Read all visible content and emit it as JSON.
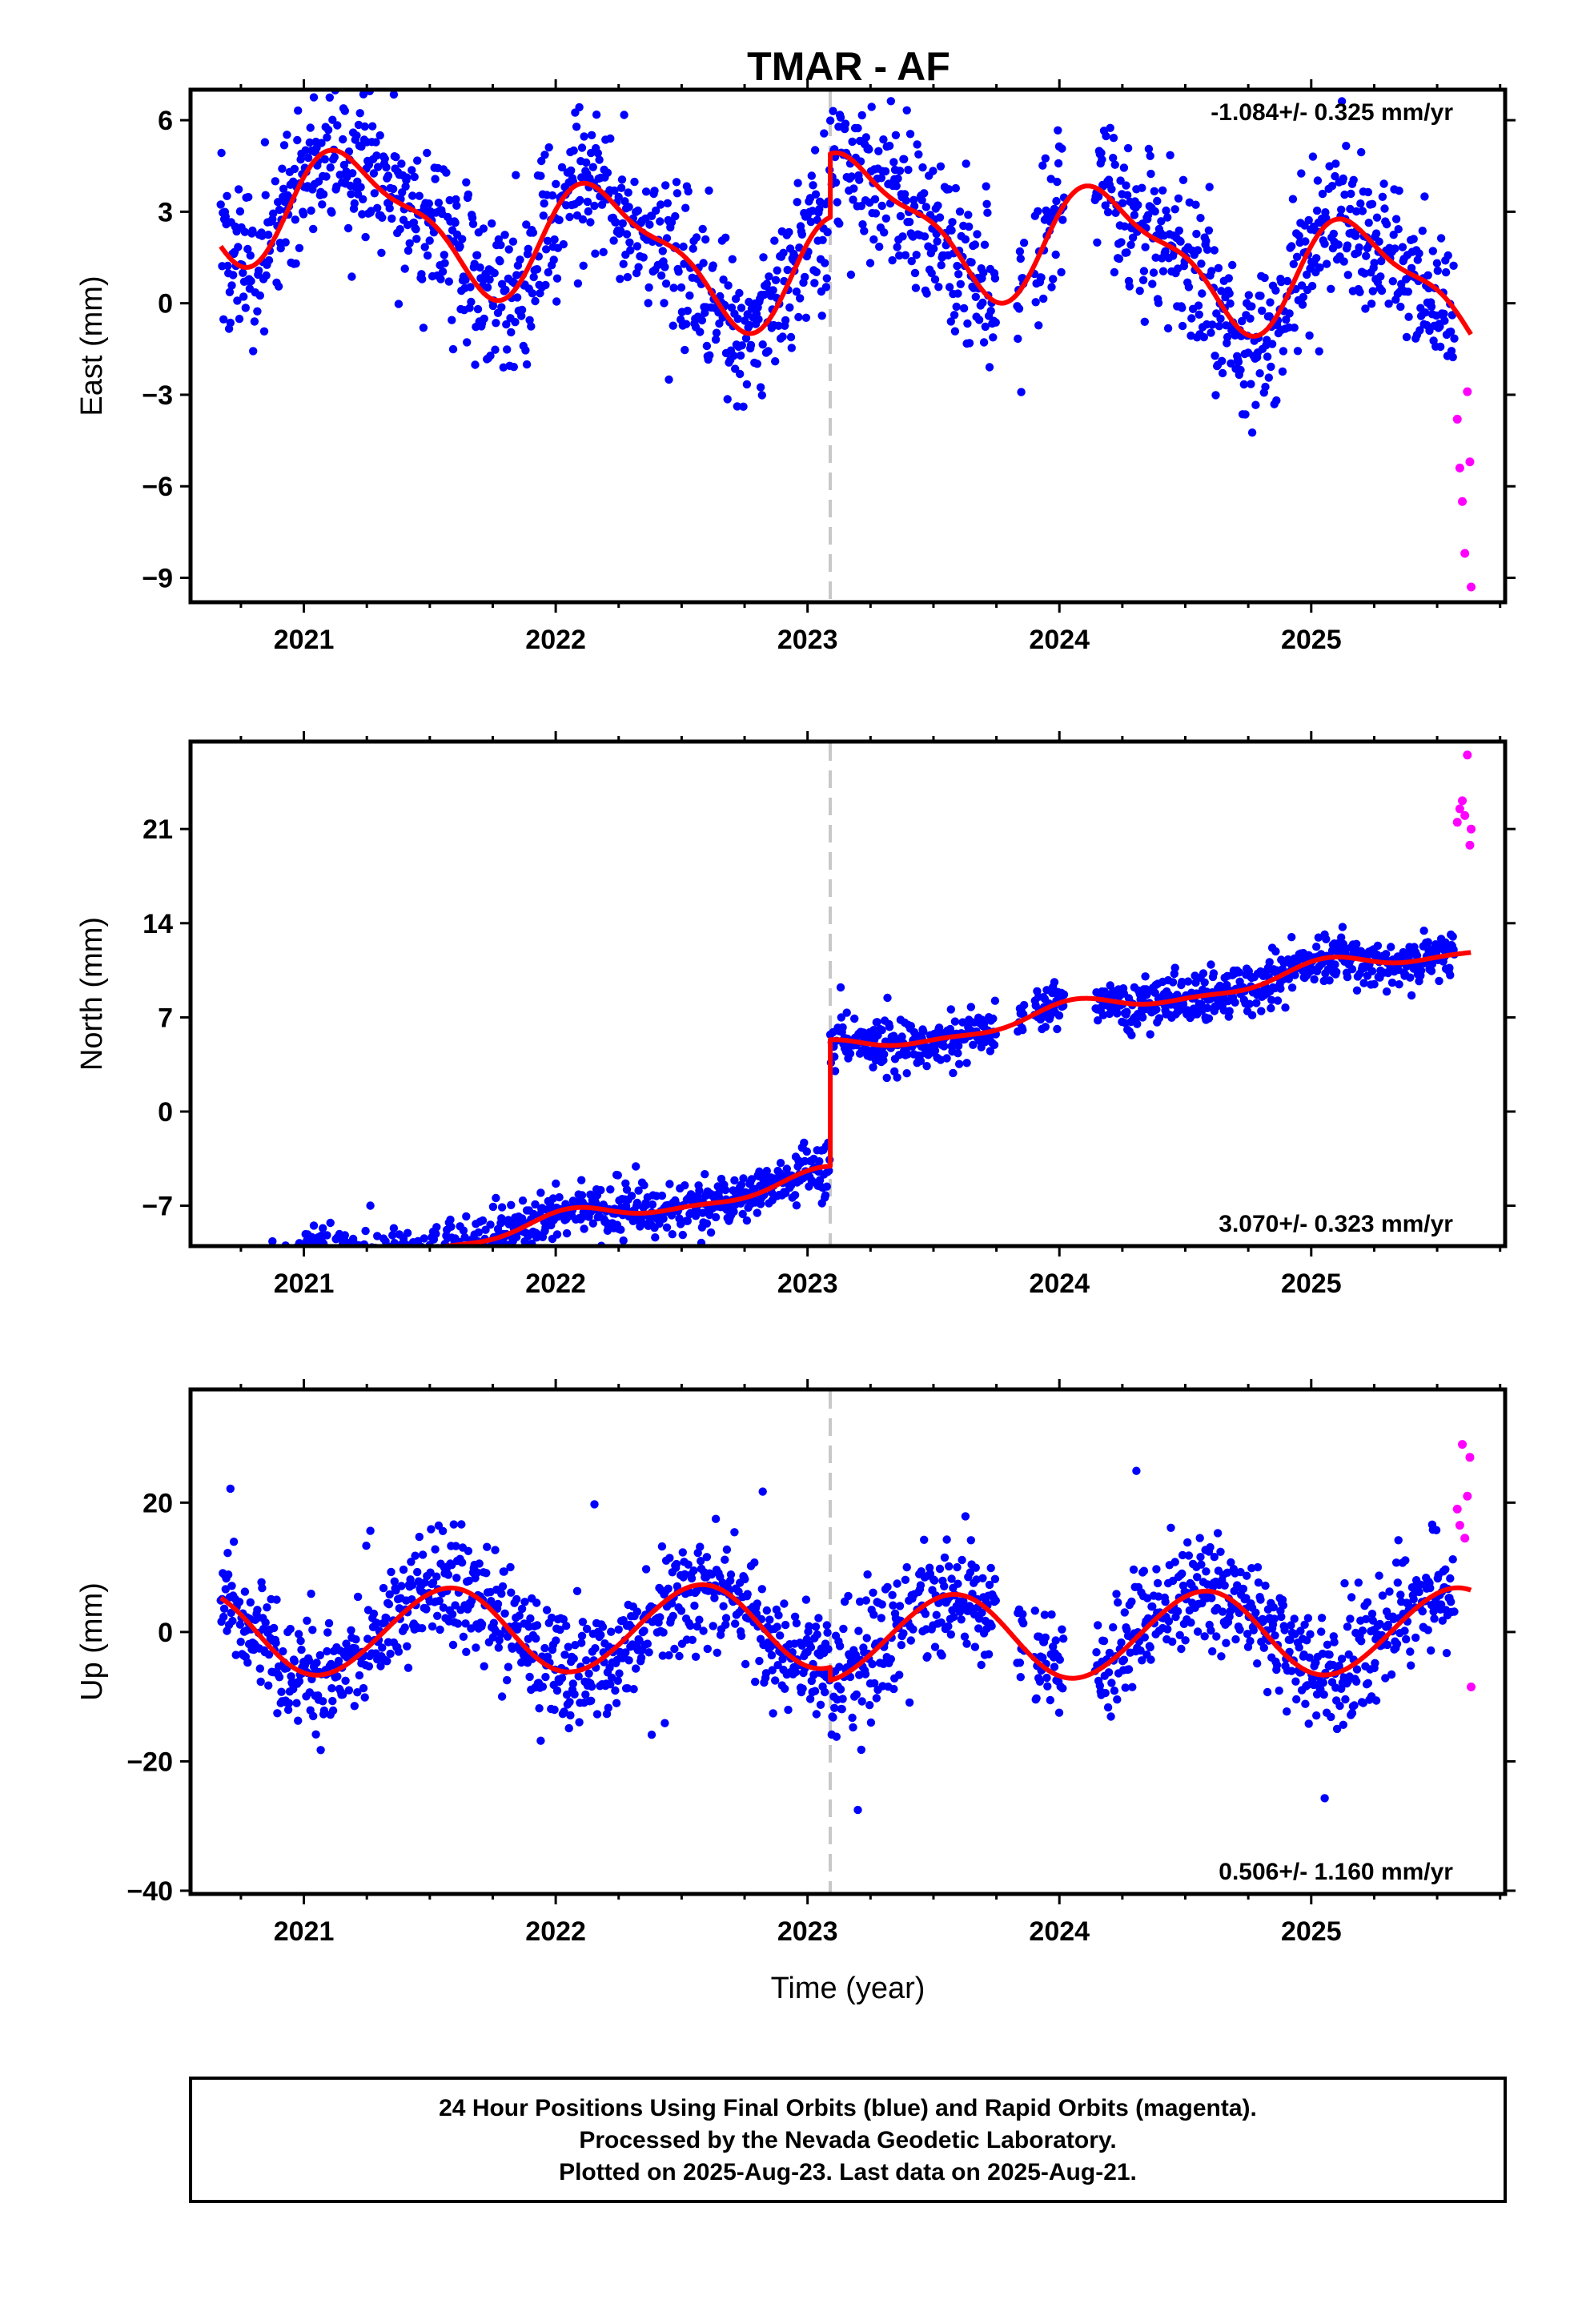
{
  "title": "TMAR - AF",
  "footer": {
    "line1": "24 Hour Positions Using Final Orbits (blue) and Rapid Orbits (magenta).",
    "line2": "Processed by the Nevada Geodetic Laboratory.",
    "line3": "Plotted on 2025-Aug-23. Last data on 2025-Aug-21."
  },
  "colors": {
    "final_orbits": "#0000ff",
    "rapid_orbits": "#ff00ff",
    "model_fit": "#ff0000",
    "event_line": "#c8c8c8"
  },
  "chart_data": [
    {
      "type": "scatter",
      "component": "east",
      "ylabel": "East (mm)",
      "xlabel": "",
      "xlim": [
        2020.55,
        2025.77
      ],
      "ylim": [
        -9.8,
        7.0
      ],
      "x_ticks": [
        2021,
        2022,
        2023,
        2024,
        2025
      ],
      "x_tick_labels": [
        "2021",
        "2022",
        "2023",
        "2024",
        "2025"
      ],
      "y_ticks": [
        6,
        3,
        0,
        -3,
        -6,
        -9
      ],
      "y_tick_labels": [
        "6",
        "3",
        "0",
        "−3",
        "−6",
        "−9"
      ],
      "rate_text": "-1.084+/- 0.325 mm/yr",
      "rate_position": "top-right",
      "event_line_x": 2023.09,
      "model": {
        "rate": -1.084,
        "offset_before": 1.02,
        "offset_after": 3.1,
        "annual_cos": 0.45,
        "annual_sin": 1.75,
        "semi_cos": 0.5,
        "semi_sin": 0.4
      },
      "final_orbits": {
        "x_start": 2020.67,
        "x_end": 2025.57,
        "scatter": 1.25,
        "gaps": [
          [
            2023.75,
            2023.83
          ],
          [
            2023.86,
            2023.9
          ],
          [
            2024.02,
            2024.14
          ]
        ]
      },
      "rapid_orbits": {
        "x": [
          2025.58,
          2025.59,
          2025.6,
          2025.61,
          2025.62,
          2025.63,
          2025.635
        ],
        "y": [
          -3.8,
          -5.4,
          -6.5,
          -8.2,
          -2.9,
          -5.2,
          -9.3
        ]
      }
    },
    {
      "type": "scatter",
      "component": "north",
      "ylabel": "North (mm)",
      "xlabel": "",
      "xlim": [
        2020.55,
        2025.77
      ],
      "ylim": [
        -10.0,
        27.5
      ],
      "x_ticks": [
        2021,
        2022,
        2023,
        2024,
        2025
      ],
      "x_tick_labels": [
        "2021",
        "2022",
        "2023",
        "2024",
        "2025"
      ],
      "y_ticks": [
        21,
        14,
        7,
        0,
        -7
      ],
      "y_tick_labels": [
        "21",
        "14",
        "7",
        "0",
        "−7"
      ],
      "rate_text": "3.070+/- 0.323 mm/yr",
      "rate_position": "bottom-right",
      "event_line_x": 2023.09,
      "model": {
        "rate": 3.07,
        "offset_before": -5.2,
        "offset_after": 4.2,
        "annual_cos": 0.6,
        "annual_sin": 0.25,
        "semi_cos": 0.2,
        "semi_sin": 0.15
      },
      "final_orbits": {
        "x_start": 2020.67,
        "x_end": 2025.57,
        "scatter": 0.9,
        "gaps": [
          [
            2023.75,
            2023.83
          ],
          [
            2023.86,
            2023.9
          ],
          [
            2024.02,
            2024.14
          ]
        ]
      },
      "rapid_orbits": {
        "x": [
          2025.58,
          2025.59,
          2025.6,
          2025.61,
          2025.62,
          2025.63,
          2025.635
        ],
        "y": [
          21.5,
          22.5,
          23.1,
          22.0,
          26.5,
          19.8,
          21.0
        ]
      }
    },
    {
      "type": "scatter",
      "component": "up",
      "ylabel": "Up (mm)",
      "xlabel": "Time (year)",
      "xlim": [
        2020.55,
        2025.77
      ],
      "ylim": [
        -40.5,
        37.5
      ],
      "x_ticks": [
        2021,
        2022,
        2023,
        2024,
        2025
      ],
      "x_tick_labels": [
        "2021",
        "2022",
        "2023",
        "2024",
        "2025"
      ],
      "y_ticks": [
        20,
        0,
        -20,
        -40
      ],
      "y_tick_labels": [
        "20",
        "0",
        "−20",
        "−40"
      ],
      "rate_text": "0.506+/- 1.160 mm/yr",
      "rate_position": "bottom-right",
      "event_line_x": 2023.09,
      "model": {
        "rate": 0.506,
        "offset_before": 0.9,
        "offset_after": -1.1,
        "annual_cos": -6.0,
        "annual_sin": -2.7,
        "semi_cos": -0.2,
        "semi_sin": 0.2
      },
      "final_orbits": {
        "x_start": 2020.67,
        "x_end": 2025.57,
        "scatter": 4.4,
        "gaps": [
          [
            2023.75,
            2023.83
          ],
          [
            2023.86,
            2023.9
          ],
          [
            2024.02,
            2024.14
          ]
        ]
      },
      "rapid_orbits": {
        "x": [
          2025.58,
          2025.59,
          2025.6,
          2025.61,
          2025.62,
          2025.63,
          2025.635
        ],
        "y": [
          19.0,
          16.5,
          29.0,
          14.5,
          21.0,
          27.0,
          -8.5
        ]
      }
    }
  ]
}
